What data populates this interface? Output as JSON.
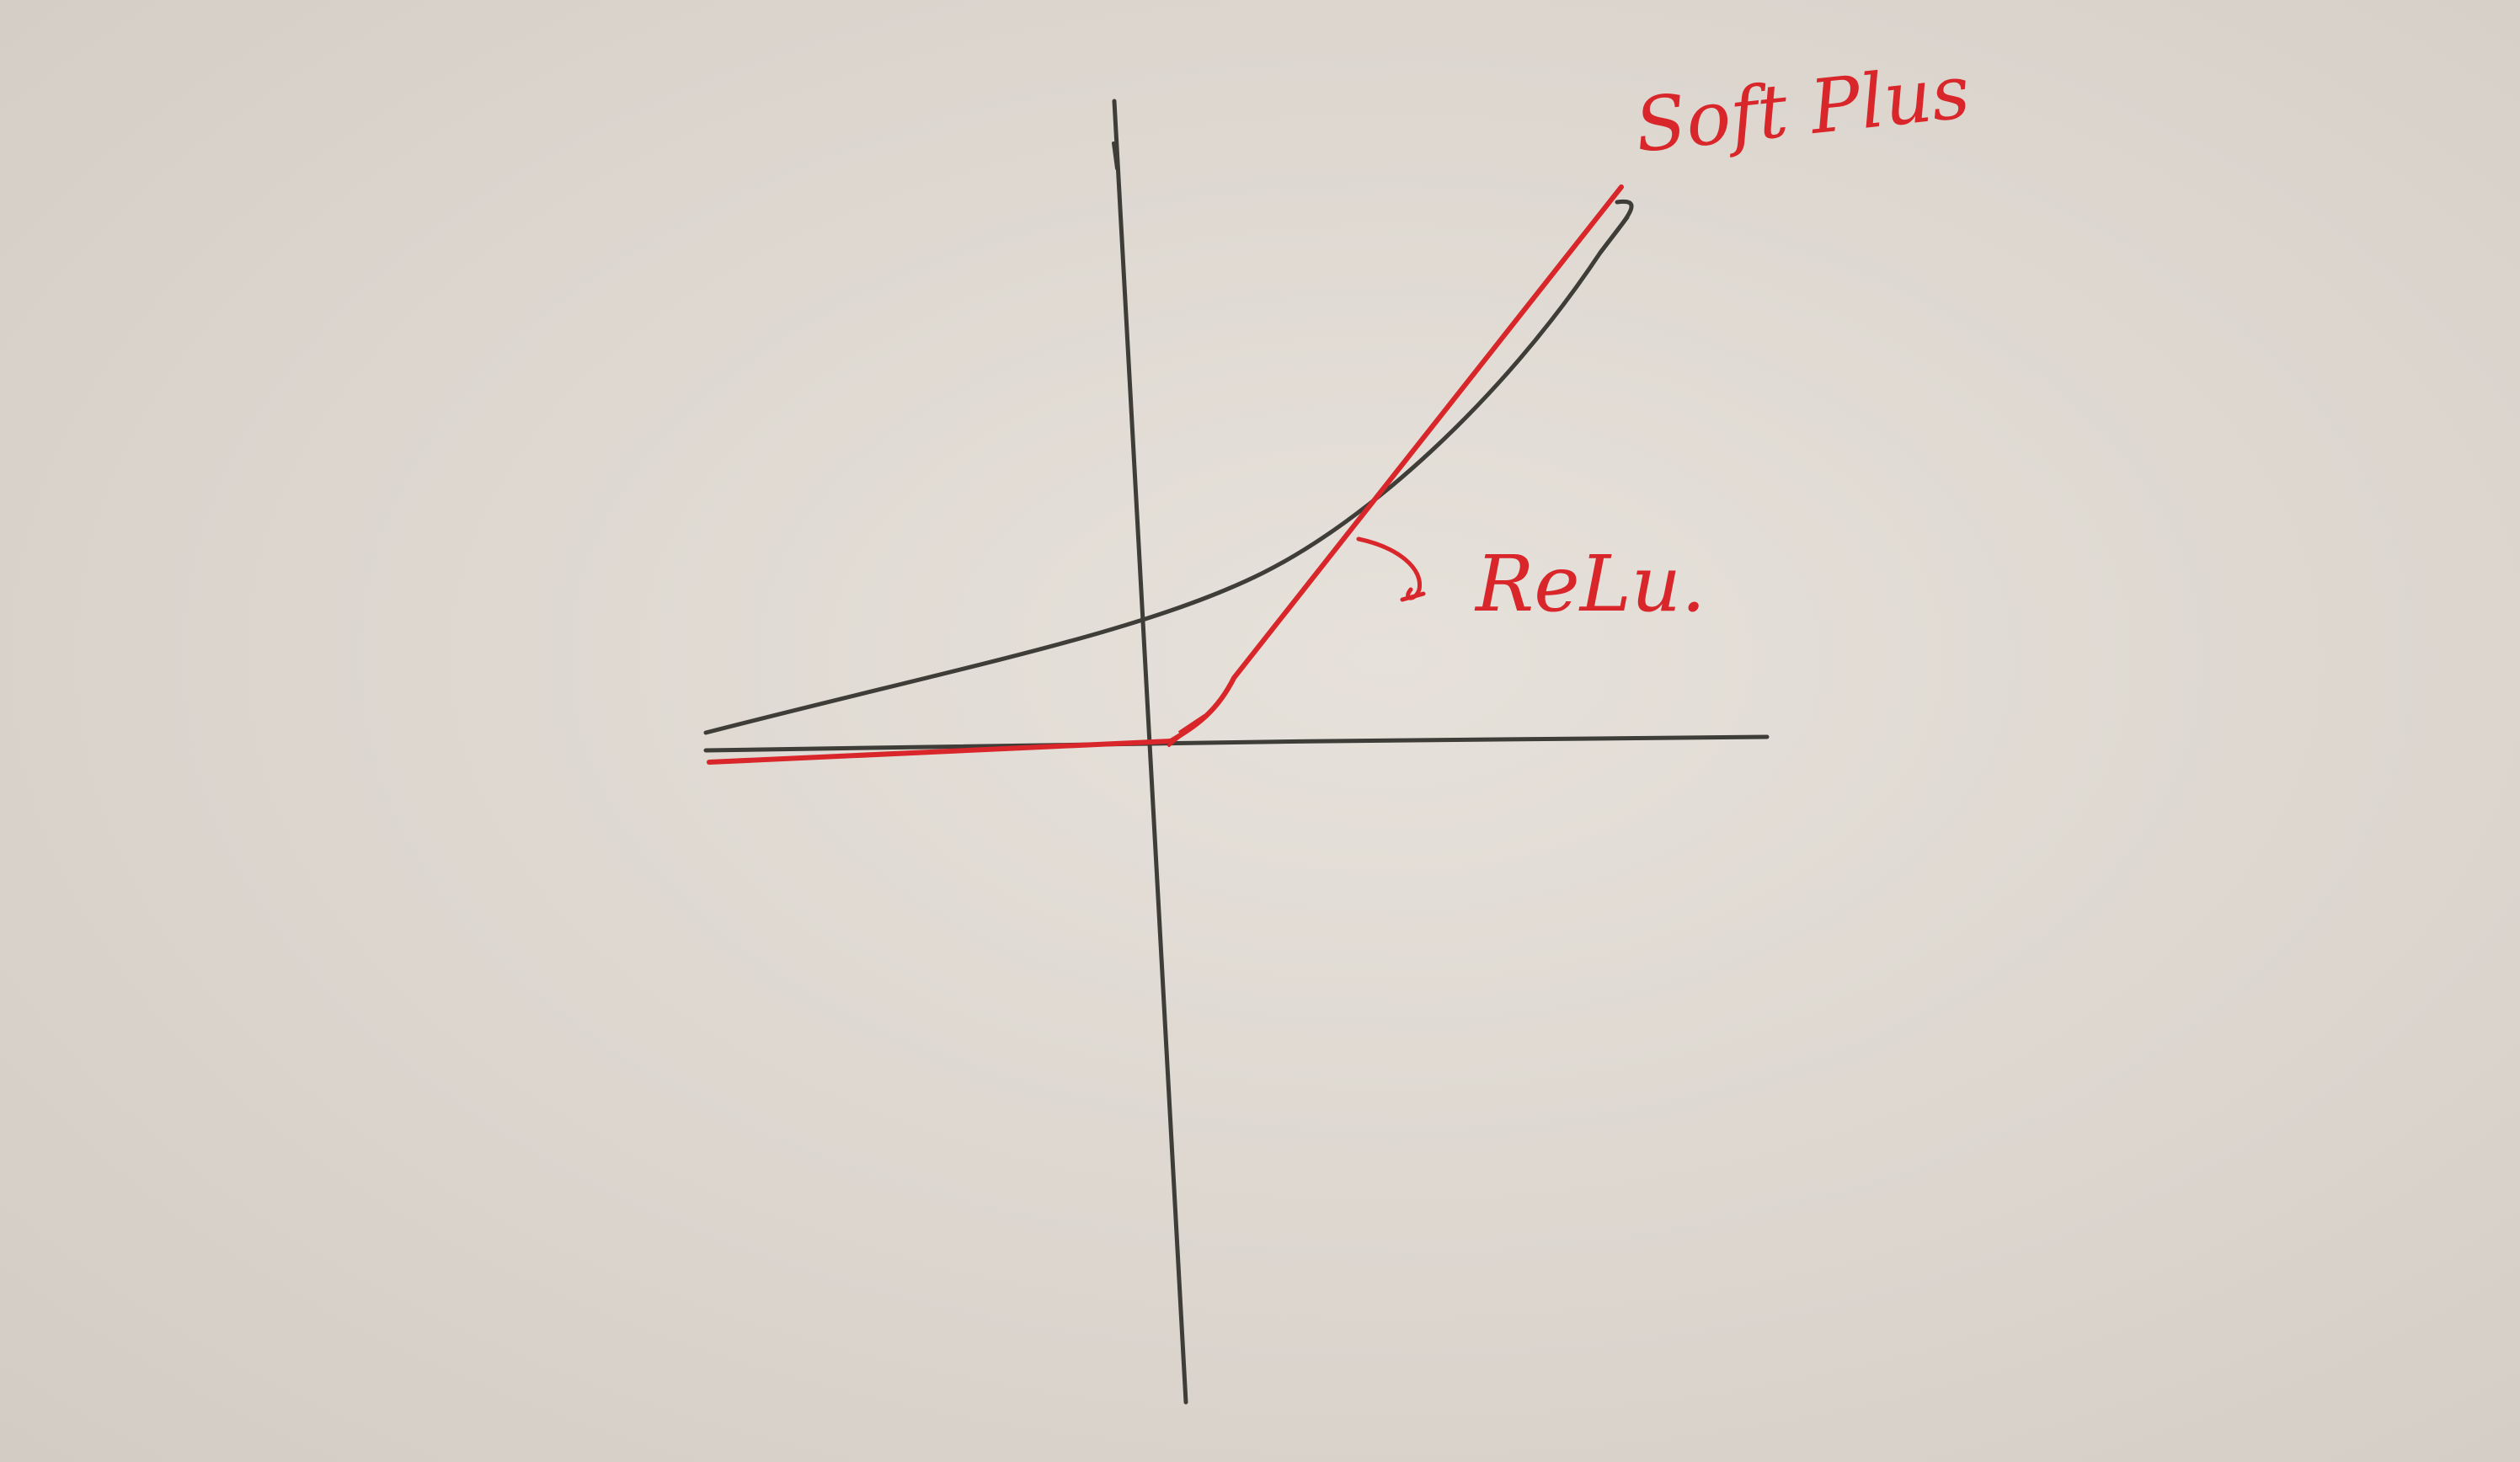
{
  "labels": {
    "softplus": "Soft Plus",
    "relu": "ReLu."
  },
  "colors": {
    "paper": "#ddd8d1",
    "pencil": "#3f3d37",
    "red_ink": "#d8262a"
  }
}
